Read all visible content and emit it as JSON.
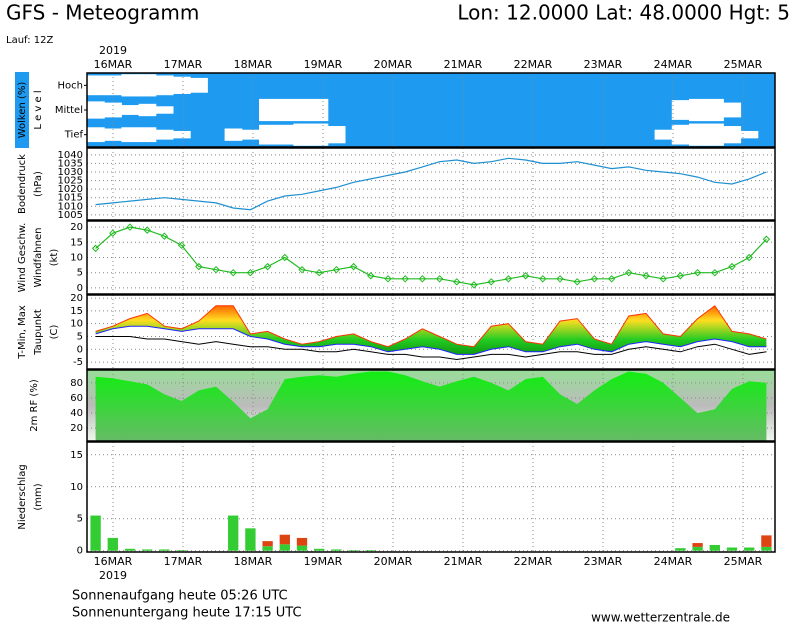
{
  "header": {
    "title": "GFS - Meteogramm",
    "location": "Lon: 12.0000 Lat: 48.0000 Hgt: 5",
    "run": "Lauf: 12Z",
    "year": "2019",
    "dates": [
      "16MAR",
      "17MAR",
      "18MAR",
      "19MAR",
      "20MAR",
      "21MAR",
      "22MAR",
      "23MAR",
      "24MAR",
      "25MAR"
    ]
  },
  "footer": {
    "sunrise": "Sonnenaufgang heute 05:26 UTC",
    "sunset": "Sonnenuntergang heute 17:15 UTC",
    "site": "www.wetterzentrale.de"
  },
  "chart_data": [
    {
      "type": "cloud",
      "ylabel": [
        "Wolken (%)",
        "L e v e l"
      ],
      "background": "#1e9bf0",
      "series": [
        {
          "name": "Hoch",
          "color": "#ffffff",
          "values": [
            80,
            80,
            90,
            90,
            80,
            70,
            60,
            0,
            0,
            0,
            0,
            0,
            0,
            0,
            0,
            0,
            0,
            0,
            0,
            0,
            0,
            0,
            0,
            0,
            0,
            0,
            0,
            0,
            0,
            0,
            0,
            0,
            0,
            0,
            0,
            0,
            0,
            0,
            0,
            0
          ]
        },
        {
          "name": "Mittel",
          "color": "#ffffff",
          "values": [
            70,
            60,
            40,
            50,
            30,
            0,
            0,
            0,
            0,
            0,
            90,
            90,
            90,
            90,
            0,
            0,
            0,
            0,
            0,
            0,
            0,
            0,
            0,
            0,
            0,
            0,
            0,
            0,
            0,
            0,
            0,
            0,
            0,
            0,
            80,
            90,
            90,
            60,
            0,
            0
          ]
        },
        {
          "name": "Tief",
          "color": "#ffffff",
          "values": [
            60,
            50,
            60,
            60,
            40,
            30,
            0,
            0,
            50,
            40,
            80,
            80,
            90,
            90,
            70,
            0,
            0,
            0,
            0,
            0,
            0,
            0,
            0,
            0,
            0,
            0,
            0,
            0,
            0,
            0,
            0,
            0,
            0,
            40,
            80,
            90,
            90,
            70,
            30,
            0
          ]
        }
      ]
    },
    {
      "type": "line",
      "ylabel": [
        "Bodendruck",
        "(hPa)"
      ],
      "color": "#1e90d0",
      "values": [
        1011,
        1012,
        1013,
        1014,
        1015,
        1014,
        1013,
        1012,
        1009,
        1008,
        1013,
        1016,
        1017,
        1019,
        1021,
        1024,
        1026,
        1028,
        1030,
        1033,
        1036,
        1037,
        1035,
        1036,
        1038,
        1037,
        1035,
        1035,
        1036,
        1034,
        1032,
        1033,
        1031,
        1030,
        1029,
        1027,
        1024,
        1023,
        1026,
        1030
      ],
      "ylim": [
        1002,
        1044
      ],
      "yticks": [
        1005,
        1010,
        1015,
        1020,
        1025,
        1030,
        1035,
        1040
      ],
      "grid": true
    },
    {
      "type": "line",
      "markers": true,
      "ylabel": [
        "Wind Geschw.",
        "Windfahnen",
        "(kt)"
      ],
      "ylabel_colors": [
        "#22bb22",
        "#000000",
        "#000000"
      ],
      "color": "#22bb22",
      "values": [
        13,
        18,
        20,
        19,
        17,
        14,
        7,
        6,
        5,
        5,
        7,
        10,
        6,
        5,
        6,
        7,
        4,
        3,
        3,
        3,
        3,
        2,
        1,
        2,
        3,
        4,
        3,
        3,
        2,
        3,
        3,
        5,
        4,
        3,
        4,
        5,
        5,
        7,
        10,
        16
      ],
      "ylim": [
        -2,
        22
      ],
      "yticks": [
        0,
        5,
        10,
        15,
        20
      ],
      "grid": true
    },
    {
      "type": "band",
      "ylabel": [
        "T-Min, Max",
        "Taupunkt",
        "(C)"
      ],
      "ylabel_colors": [
        "#dd2222",
        "#000000",
        "#000000"
      ],
      "series": [
        {
          "name": "Max",
          "color": "#ff3300",
          "values": [
            7,
            9,
            12,
            14,
            9,
            8,
            11,
            17,
            17,
            6,
            7,
            4,
            2,
            3,
            5,
            6,
            3,
            1,
            4,
            8,
            5,
            2,
            1,
            9,
            10,
            3,
            2,
            11,
            12,
            4,
            2,
            13,
            14,
            6,
            5,
            12,
            17,
            7,
            6,
            4
          ]
        },
        {
          "name": "Min",
          "color": "#2222ff",
          "values": [
            6,
            8,
            9,
            9,
            8,
            7,
            8,
            8,
            8,
            5,
            4,
            2,
            1,
            1,
            2,
            2,
            1,
            -1,
            0,
            1,
            0,
            -2,
            -2,
            0,
            1,
            -1,
            -1,
            1,
            2,
            0,
            -1,
            2,
            3,
            2,
            1,
            3,
            4,
            3,
            1,
            1
          ]
        },
        {
          "name": "Taupunkt",
          "color": "#000000",
          "values": [
            5,
            5,
            5,
            4,
            4,
            3,
            2,
            3,
            2,
            1,
            1,
            0,
            0,
            -1,
            -1,
            0,
            -1,
            -2,
            -2,
            -3,
            -3,
            -4,
            -3,
            -2,
            -2,
            -3,
            -2,
            -1,
            -1,
            -2,
            -2,
            0,
            1,
            0,
            -1,
            1,
            2,
            0,
            -2,
            -1
          ]
        }
      ],
      "ylim": [
        -7.7,
        21.2
      ],
      "yticks": [
        -5,
        0,
        5,
        10,
        15,
        20
      ],
      "grid": true
    },
    {
      "type": "area",
      "ylabel": [
        "2m RF (%)"
      ],
      "ylabel_colors": [
        "#22bb22"
      ],
      "color": "#22cc22",
      "values": [
        88,
        86,
        82,
        78,
        65,
        56,
        70,
        75,
        55,
        33,
        45,
        85,
        88,
        90,
        88,
        92,
        95,
        95,
        90,
        82,
        75,
        82,
        88,
        80,
        70,
        85,
        88,
        65,
        52,
        70,
        85,
        95,
        92,
        80,
        60,
        40,
        45,
        72,
        82,
        80
      ],
      "ylim": [
        3,
        97
      ],
      "yticks": [
        20,
        40,
        60,
        80
      ],
      "grid": true
    },
    {
      "type": "bar",
      "ylabel": [
        "Niederschlag",
        "(mm)"
      ],
      "series": [
        {
          "color": "#33cc33",
          "values": [
            5.5,
            2,
            0.3,
            0.2,
            0.2,
            0.1,
            0,
            0,
            5.5,
            3.5,
            0.7,
            1,
            0.8,
            0.3,
            0.2,
            0.1,
            0.1,
            0,
            0,
            0,
            0,
            0,
            0,
            0,
            0,
            0,
            0,
            0,
            0,
            0,
            0,
            0,
            0,
            0,
            0.4,
            0.6,
            0.9,
            0.5,
            0.5,
            0.6
          ]
        },
        {
          "color": "#dd4411",
          "values": [
            0,
            0,
            0,
            0,
            0,
            0,
            0,
            0,
            0,
            0,
            0.8,
            1.5,
            1.2,
            0,
            0,
            0,
            0,
            0,
            0,
            0,
            0,
            0,
            0,
            0,
            0,
            0,
            0,
            0,
            0,
            0,
            0,
            0,
            0,
            0,
            0,
            0.6,
            0,
            0,
            0,
            1.8
          ]
        }
      ],
      "ylim": [
        -0.2,
        17
      ],
      "yticks": [
        0,
        5,
        10,
        15
      ],
      "grid": true
    }
  ]
}
